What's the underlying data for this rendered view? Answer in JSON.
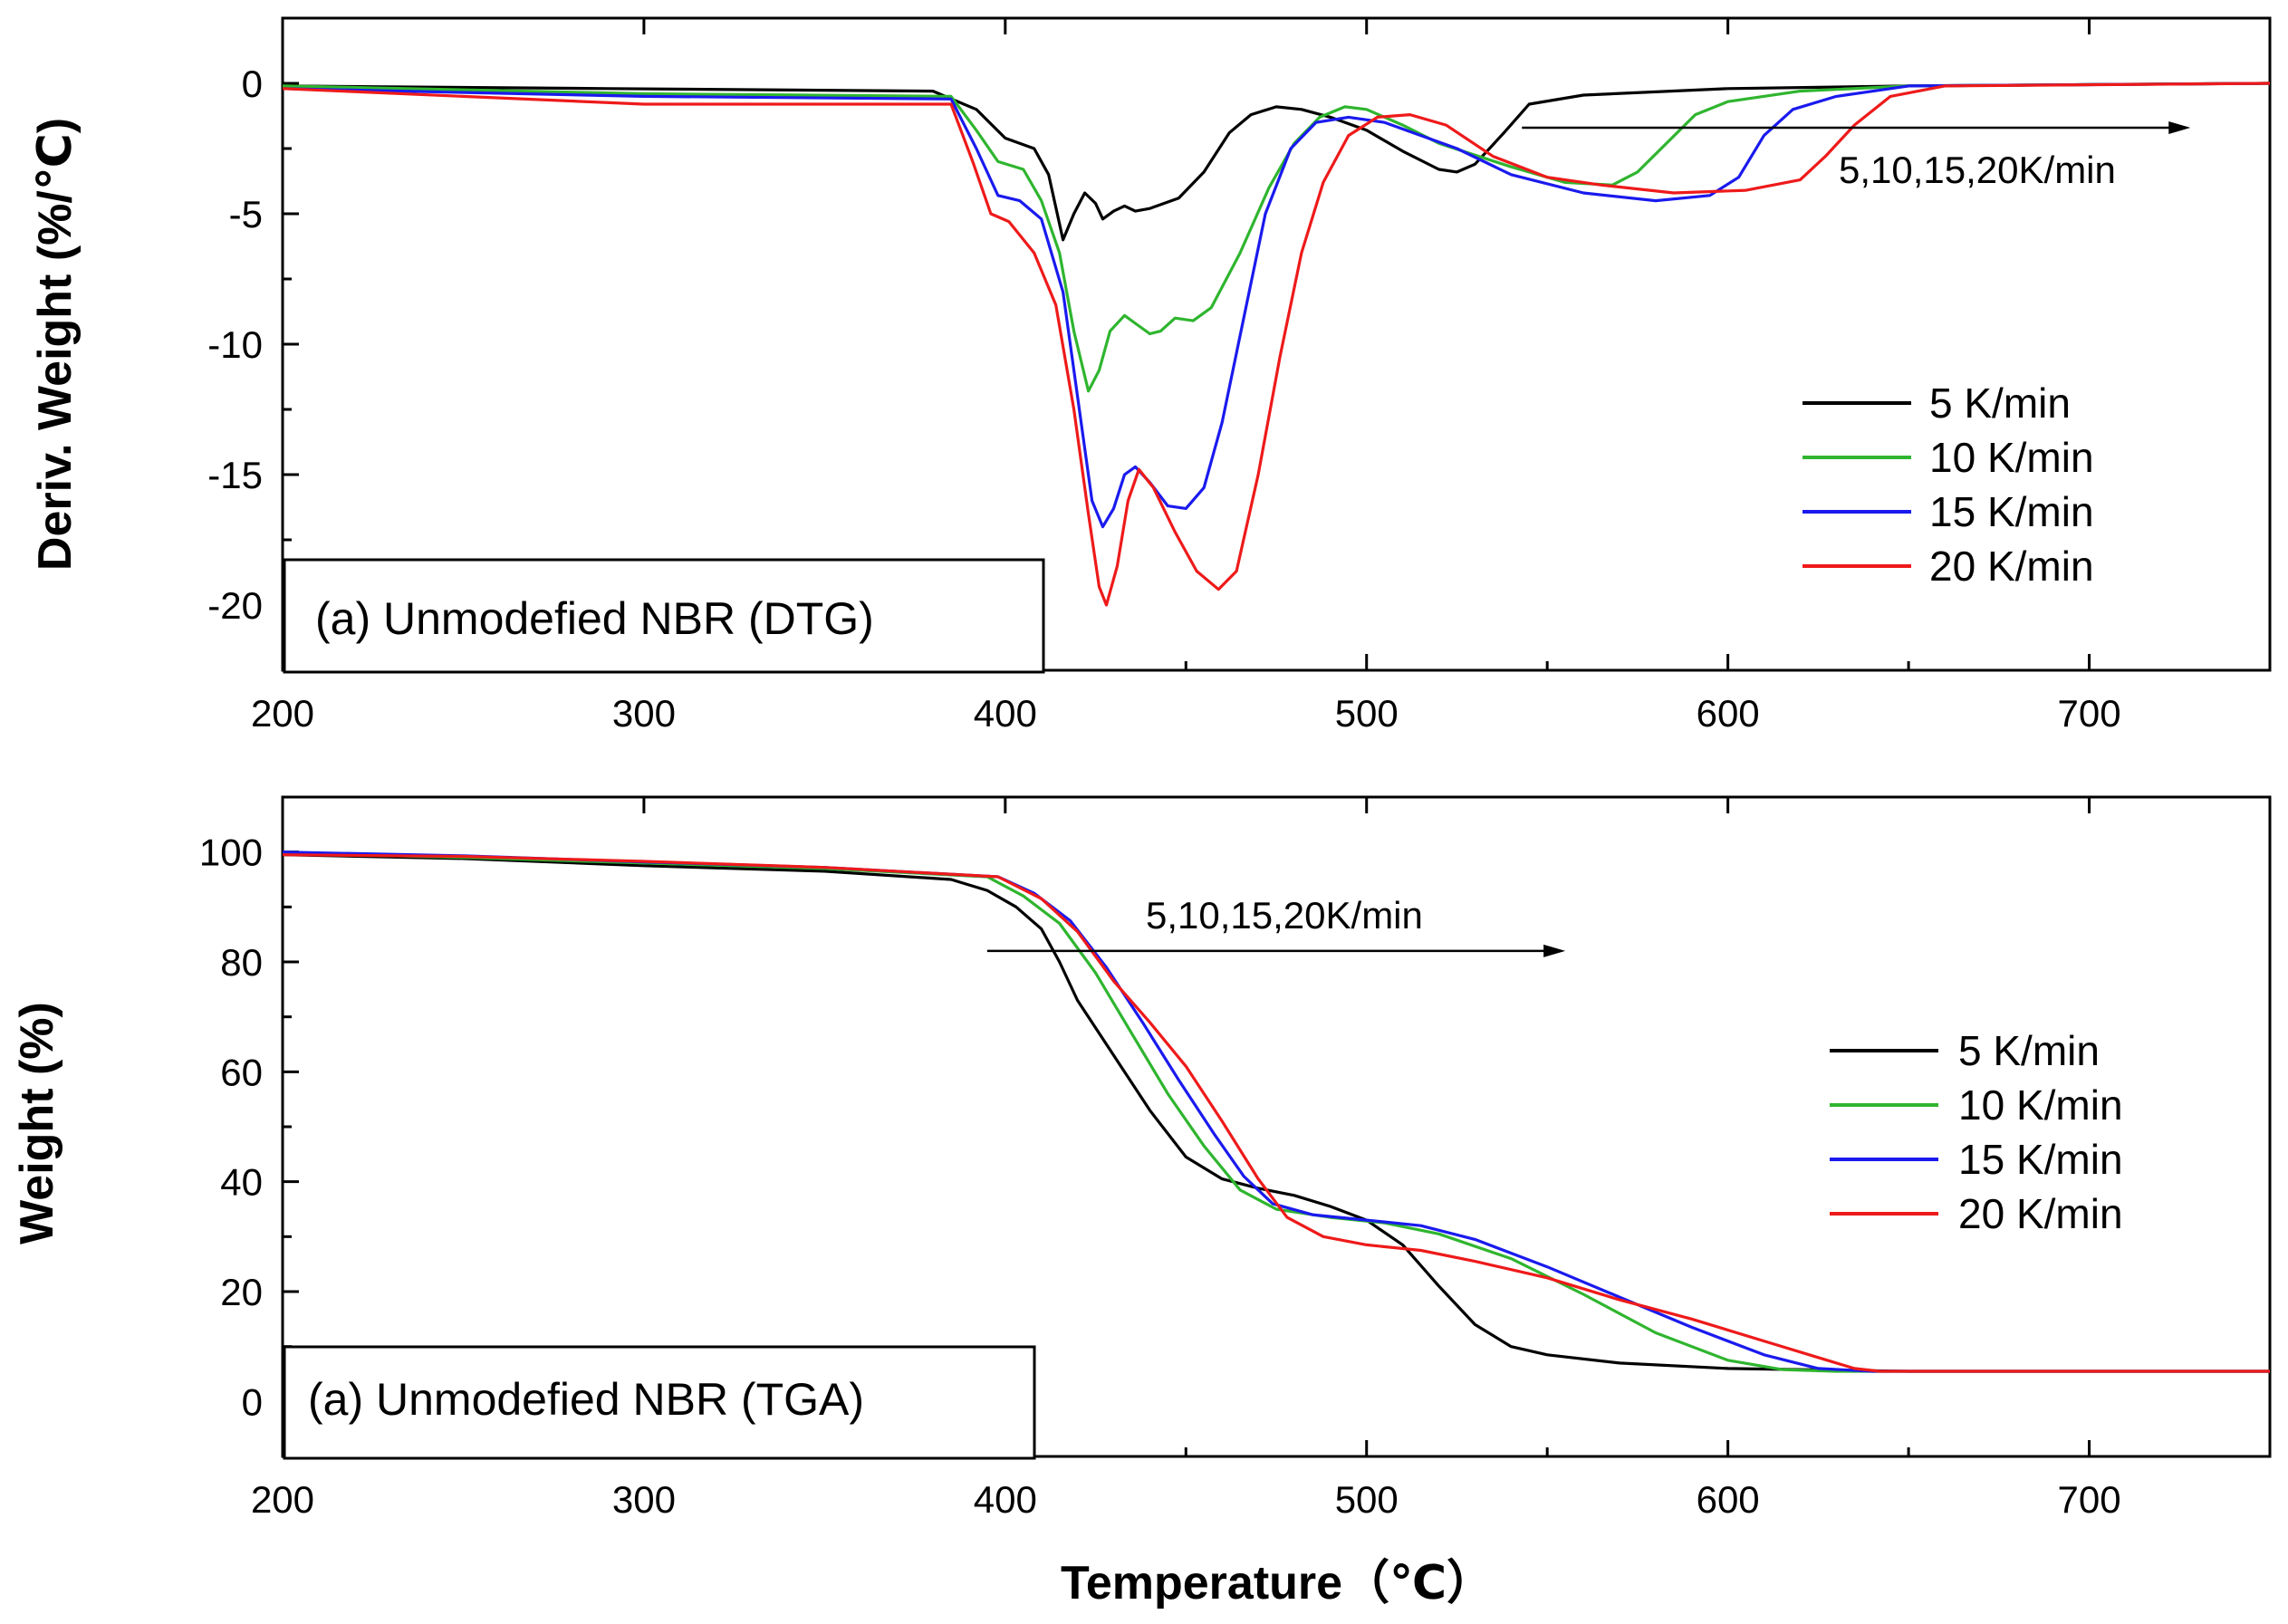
{
  "chart_data": [
    {
      "type": "line",
      "panel": "top",
      "title": "(a) Unmodefied NBR (DTG)",
      "xlabel": "",
      "ylabel": "Deriv. Weight (%/℃)",
      "xlim": [
        200,
        750
      ],
      "ylim": [
        -22.5,
        2.5
      ],
      "xticks": [
        200,
        300,
        400,
        500,
        600,
        700
      ],
      "yticks": [
        0,
        -5,
        -10,
        -15,
        -20
      ],
      "annotation": {
        "text": "5,10,15,20K/min",
        "arrow_from_x": 543,
        "arrow_to_x": 728,
        "arrow_y": -1.7
      },
      "legend_position": "right",
      "series": [
        {
          "name": "5 K/min",
          "color": "#000000",
          "points": [
            [
              200,
              -0.1
            ],
            [
              290,
              -0.2
            ],
            [
              380,
              -0.3
            ],
            [
              392,
              -1.0
            ],
            [
              400,
              -2.1
            ],
            [
              408,
              -2.5
            ],
            [
              412,
              -3.5
            ],
            [
              416,
              -6.0
            ],
            [
              419,
              -5.0
            ],
            [
              422,
              -4.2
            ],
            [
              425,
              -4.6
            ],
            [
              427,
              -5.2
            ],
            [
              430,
              -4.9
            ],
            [
              433,
              -4.7
            ],
            [
              436,
              -4.9
            ],
            [
              440,
              -4.8
            ],
            [
              448,
              -4.4
            ],
            [
              455,
              -3.4
            ],
            [
              462,
              -1.9
            ],
            [
              468,
              -1.2
            ],
            [
              475,
              -0.9
            ],
            [
              482,
              -1.0
            ],
            [
              490,
              -1.3
            ],
            [
              500,
              -1.8
            ],
            [
              510,
              -2.6
            ],
            [
              520,
              -3.3
            ],
            [
              525,
              -3.4
            ],
            [
              530,
              -3.1
            ],
            [
              538,
              -1.9
            ],
            [
              545,
              -0.8
            ],
            [
              560,
              -0.45
            ],
            [
              600,
              -0.2
            ],
            [
              650,
              -0.1
            ],
            [
              700,
              -0.05
            ],
            [
              750,
              0
            ]
          ]
        },
        {
          "name": "10 K/min",
          "color": "#2fb52f",
          "points": [
            [
              200,
              -0.1
            ],
            [
              300,
              -0.4
            ],
            [
              385,
              -0.5
            ],
            [
              392,
              -1.8
            ],
            [
              398,
              -3.0
            ],
            [
              405,
              -3.3
            ],
            [
              410,
              -4.5
            ],
            [
              415,
              -6.5
            ],
            [
              419,
              -9.5
            ],
            [
              423,
              -11.8
            ],
            [
              426,
              -11.0
            ],
            [
              429,
              -9.5
            ],
            [
              433,
              -8.9
            ],
            [
              436,
              -9.2
            ],
            [
              440,
              -9.6
            ],
            [
              443,
              -9.5
            ],
            [
              447,
              -9.0
            ],
            [
              452,
              -9.1
            ],
            [
              457,
              -8.6
            ],
            [
              465,
              -6.5
            ],
            [
              473,
              -4.0
            ],
            [
              480,
              -2.3
            ],
            [
              487,
              -1.3
            ],
            [
              494,
              -0.9
            ],
            [
              500,
              -1.0
            ],
            [
              510,
              -1.6
            ],
            [
              520,
              -2.3
            ],
            [
              540,
              -3.2
            ],
            [
              555,
              -3.8
            ],
            [
              568,
              -3.9
            ],
            [
              575,
              -3.4
            ],
            [
              583,
              -2.3
            ],
            [
              591,
              -1.2
            ],
            [
              600,
              -0.7
            ],
            [
              620,
              -0.3
            ],
            [
              650,
              -0.1
            ],
            [
              750,
              0
            ]
          ]
        },
        {
          "name": "15 K/min",
          "color": "#1a1aee",
          "points": [
            [
              200,
              -0.2
            ],
            [
              300,
              -0.5
            ],
            [
              385,
              -0.6
            ],
            [
              392,
              -2.5
            ],
            [
              398,
              -4.3
            ],
            [
              404,
              -4.5
            ],
            [
              410,
              -5.2
            ],
            [
              416,
              -8.0
            ],
            [
              420,
              -12.0
            ],
            [
              424,
              -16.0
            ],
            [
              427,
              -17.0
            ],
            [
              430,
              -16.3
            ],
            [
              433,
              -15.0
            ],
            [
              436,
              -14.7
            ],
            [
              440,
              -15.3
            ],
            [
              445,
              -16.2
            ],
            [
              450,
              -16.3
            ],
            [
              455,
              -15.5
            ],
            [
              460,
              -13.0
            ],
            [
              466,
              -9.0
            ],
            [
              472,
              -5.0
            ],
            [
              479,
              -2.5
            ],
            [
              486,
              -1.5
            ],
            [
              495,
              -1.3
            ],
            [
              505,
              -1.5
            ],
            [
              515,
              -2.0
            ],
            [
              525,
              -2.5
            ],
            [
              540,
              -3.5
            ],
            [
              560,
              -4.2
            ],
            [
              580,
              -4.5
            ],
            [
              595,
              -4.3
            ],
            [
              603,
              -3.6
            ],
            [
              610,
              -2.0
            ],
            [
              618,
              -1.0
            ],
            [
              630,
              -0.5
            ],
            [
              650,
              -0.1
            ],
            [
              750,
              0
            ]
          ]
        },
        {
          "name": "20 K/min",
          "color": "#ee1a1a",
          "points": [
            [
              200,
              -0.2
            ],
            [
              300,
              -0.8
            ],
            [
              385,
              -0.8
            ],
            [
              391,
              -3.0
            ],
            [
              396,
              -5.0
            ],
            [
              401,
              -5.3
            ],
            [
              408,
              -6.5
            ],
            [
              414,
              -8.5
            ],
            [
              419,
              -12.5
            ],
            [
              423,
              -16.5
            ],
            [
              426,
              -19.3
            ],
            [
              428,
              -20.0
            ],
            [
              431,
              -18.5
            ],
            [
              434,
              -16.0
            ],
            [
              437,
              -14.8
            ],
            [
              441,
              -15.5
            ],
            [
              447,
              -17.2
            ],
            [
              453,
              -18.7
            ],
            [
              459,
              -19.4
            ],
            [
              464,
              -18.7
            ],
            [
              470,
              -15.0
            ],
            [
              476,
              -10.5
            ],
            [
              482,
              -6.5
            ],
            [
              488,
              -3.8
            ],
            [
              495,
              -2.0
            ],
            [
              503,
              -1.3
            ],
            [
              512,
              -1.2
            ],
            [
              522,
              -1.6
            ],
            [
              535,
              -2.8
            ],
            [
              550,
              -3.6
            ],
            [
              565,
              -3.9
            ],
            [
              585,
              -4.2
            ],
            [
              605,
              -4.1
            ],
            [
              620,
              -3.7
            ],
            [
              627,
              -2.8
            ],
            [
              635,
              -1.6
            ],
            [
              645,
              -0.5
            ],
            [
              660,
              -0.1
            ],
            [
              750,
              0
            ]
          ]
        }
      ]
    },
    {
      "type": "line",
      "panel": "bottom",
      "title": "(a) Unmodefied NBR (TGA)",
      "xlabel": "Temperature（℃）",
      "ylabel": "Weight (%)",
      "xlim": [
        200,
        750
      ],
      "ylim": [
        -10,
        110
      ],
      "xticks": [
        200,
        300,
        400,
        500,
        600,
        700
      ],
      "yticks": [
        0,
        20,
        40,
        60,
        80,
        100
      ],
      "annotation": {
        "text": "5,10,15,20K/min",
        "arrow_from_x": 395,
        "arrow_to_x": 555,
        "arrow_y": 82
      },
      "legend_position": "right",
      "series": [
        {
          "name": "5 K/min",
          "color": "#000000",
          "points": [
            [
              200,
              99.5
            ],
            [
              250,
              98.8
            ],
            [
              300,
              97.5
            ],
            [
              350,
              96.5
            ],
            [
              385,
              95.0
            ],
            [
              395,
              93.0
            ],
            [
              403,
              90.0
            ],
            [
              410,
              86.0
            ],
            [
              415,
              80.0
            ],
            [
              420,
              73.0
            ],
            [
              430,
              63.0
            ],
            [
              440,
              53.0
            ],
            [
              450,
              44.5
            ],
            [
              460,
              40.5
            ],
            [
              470,
              38.8
            ],
            [
              480,
              37.5
            ],
            [
              490,
              35.5
            ],
            [
              500,
              33.0
            ],
            [
              510,
              28.5
            ],
            [
              520,
              21.0
            ],
            [
              530,
              14.0
            ],
            [
              540,
              10.0
            ],
            [
              550,
              8.5
            ],
            [
              570,
              7.0
            ],
            [
              600,
              6.0
            ],
            [
              650,
              5.5
            ],
            [
              750,
              5.5
            ]
          ]
        },
        {
          "name": "10 K/min",
          "color": "#2fb52f",
          "points": [
            [
              200,
              99.8
            ],
            [
              250,
              99.0
            ],
            [
              300,
              98.0
            ],
            [
              350,
              97.0
            ],
            [
              395,
              95.5
            ],
            [
              405,
              92.0
            ],
            [
              415,
              87.0
            ],
            [
              425,
              78.0
            ],
            [
              435,
              67.0
            ],
            [
              445,
              56.0
            ],
            [
              455,
              46.5
            ],
            [
              465,
              38.5
            ],
            [
              475,
              35.0
            ],
            [
              490,
              33.5
            ],
            [
              505,
              32.5
            ],
            [
              520,
              30.5
            ],
            [
              540,
              26.0
            ],
            [
              560,
              19.5
            ],
            [
              580,
              12.5
            ],
            [
              600,
              7.5
            ],
            [
              615,
              5.8
            ],
            [
              630,
              5.5
            ],
            [
              750,
              5.5
            ]
          ]
        },
        {
          "name": "15 K/min",
          "color": "#1a1aee",
          "points": [
            [
              200,
              100.0
            ],
            [
              250,
              99.3
            ],
            [
              300,
              98.2
            ],
            [
              350,
              97.2
            ],
            [
              398,
              95.5
            ],
            [
              408,
              92.5
            ],
            [
              418,
              87.5
            ],
            [
              428,
              79.0
            ],
            [
              438,
              69.0
            ],
            [
              448,
              58.5
            ],
            [
              458,
              48.5
            ],
            [
              466,
              41.0
            ],
            [
              474,
              36.0
            ],
            [
              485,
              34.0
            ],
            [
              500,
              33.0
            ],
            [
              515,
              32.0
            ],
            [
              530,
              29.5
            ],
            [
              550,
              24.5
            ],
            [
              570,
              19.0
            ],
            [
              590,
              13.5
            ],
            [
              610,
              8.5
            ],
            [
              625,
              6.0
            ],
            [
              640,
              5.5
            ],
            [
              750,
              5.5
            ]
          ]
        },
        {
          "name": "20 K/min",
          "color": "#ee1a1a",
          "points": [
            [
              200,
              99.5
            ],
            [
              250,
              99.2
            ],
            [
              300,
              98.3
            ],
            [
              350,
              97.2
            ],
            [
              398,
              95.5
            ],
            [
              410,
              91.5
            ],
            [
              420,
              85.5
            ],
            [
              430,
              76.5
            ],
            [
              440,
              69.0
            ],
            [
              450,
              61.0
            ],
            [
              460,
              51.0
            ],
            [
              470,
              40.5
            ],
            [
              478,
              33.5
            ],
            [
              488,
              30.0
            ],
            [
              500,
              28.5
            ],
            [
              515,
              27.5
            ],
            [
              530,
              25.5
            ],
            [
              550,
              22.5
            ],
            [
              570,
              18.5
            ],
            [
              590,
              15.0
            ],
            [
              610,
              11.0
            ],
            [
              625,
              8.0
            ],
            [
              635,
              6.0
            ],
            [
              642,
              5.5
            ],
            [
              750,
              5.5
            ]
          ]
        }
      ]
    }
  ]
}
